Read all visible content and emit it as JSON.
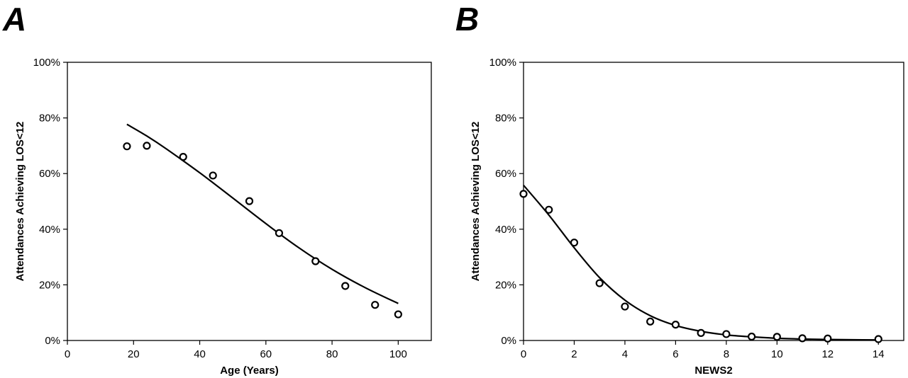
{
  "chart_data": [
    {
      "panel": "A",
      "type": "scatter",
      "xlabel": "Age (Years)",
      "ylabel": "Attendances Achieving LOS<12",
      "xlim": [
        0,
        110
      ],
      "ylim": [
        0,
        100
      ],
      "x_ticks": [
        0,
        20,
        40,
        60,
        80,
        100
      ],
      "y_ticks": [
        0,
        20,
        40,
        60,
        80,
        100
      ],
      "y_tick_format": "percent",
      "grid": false,
      "points": {
        "x": [
          18,
          24,
          35,
          44,
          55,
          64,
          75,
          84,
          93,
          100
        ],
        "y": [
          69.8,
          70.0,
          66.0,
          59.3,
          50.1,
          38.6,
          28.5,
          19.6,
          12.8,
          9.4
        ]
      },
      "fit": {
        "x": [
          18,
          24,
          30,
          40,
          50,
          60,
          70,
          80,
          90,
          100
        ],
        "y": [
          77.7,
          73.5,
          68.8,
          60.3,
          51.2,
          42.0,
          33.3,
          25.6,
          19.0,
          13.3
        ]
      }
    },
    {
      "panel": "B",
      "type": "scatter",
      "xlabel": "NEWS2",
      "ylabel": "Attendances Achieving LOS<12",
      "xlim": [
        0,
        15
      ],
      "ylim": [
        0,
        100
      ],
      "x_ticks": [
        0,
        2,
        4,
        6,
        8,
        10,
        12,
        14
      ],
      "y_ticks": [
        0,
        20,
        40,
        60,
        80,
        100
      ],
      "y_tick_format": "percent",
      "grid": false,
      "points": {
        "x": [
          0,
          1,
          2,
          3,
          4,
          5,
          6,
          7,
          8,
          9,
          10,
          11,
          12,
          14
        ],
        "y": [
          52.7,
          47.0,
          35.2,
          20.6,
          12.2,
          6.8,
          5.7,
          2.7,
          2.3,
          1.4,
          1.3,
          0.8,
          0.7,
          0.5
        ]
      },
      "fit": {
        "x": [
          0,
          1,
          2,
          3,
          4,
          5,
          6,
          7,
          8,
          9,
          10,
          11,
          12,
          13,
          14
        ],
        "y": [
          55.8,
          45.1,
          33.3,
          22.6,
          14.5,
          8.9,
          5.4,
          3.3,
          2.0,
          1.3,
          0.8,
          0.5,
          0.35,
          0.25,
          0.2
        ]
      }
    }
  ],
  "panels": [
    {
      "letter": "A"
    },
    {
      "letter": "B"
    }
  ]
}
